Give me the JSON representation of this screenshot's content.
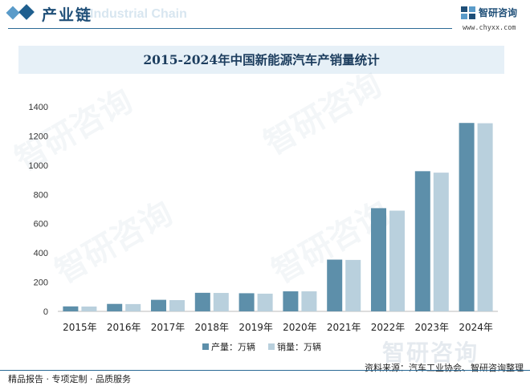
{
  "header": {
    "title": "产业链",
    "watermark_text": "Industrial Chain",
    "brand_name": "智研咨询",
    "brand_url": "www.chyxx.com"
  },
  "colors": {
    "production": "#5d8faa",
    "sales": "#b9d0dd",
    "accent": "#1f4f78"
  },
  "chart_data": {
    "type": "bar",
    "title": "2015-2024年中国新能源汽车产销量统计",
    "categories": [
      "2015年",
      "2016年",
      "2017年",
      "2018年",
      "2019年",
      "2020年",
      "2021年",
      "2022年",
      "2023年",
      "2024年"
    ],
    "series": [
      {
        "name": "产量：万辆",
        "values": [
          34,
          51,
          79,
          127,
          124,
          137,
          354,
          706,
          959,
          1289
        ]
      },
      {
        "name": "销量：万辆",
        "values": [
          33,
          50,
          77,
          126,
          121,
          137,
          352,
          689,
          949,
          1287
        ]
      }
    ],
    "ylim": [
      0,
      1400
    ],
    "yticks": [
      0,
      200,
      400,
      600,
      800,
      1000,
      1200,
      1400
    ],
    "xlabel": "",
    "ylabel": "",
    "legend_position": "bottom",
    "grid": false
  },
  "footer": {
    "left": "精品报告 · 专项定制 · 品质服务",
    "source": "资料来源：汽车工业协会、智研咨询整理",
    "watermark": "智研咨询"
  },
  "watermark": "智研咨询"
}
